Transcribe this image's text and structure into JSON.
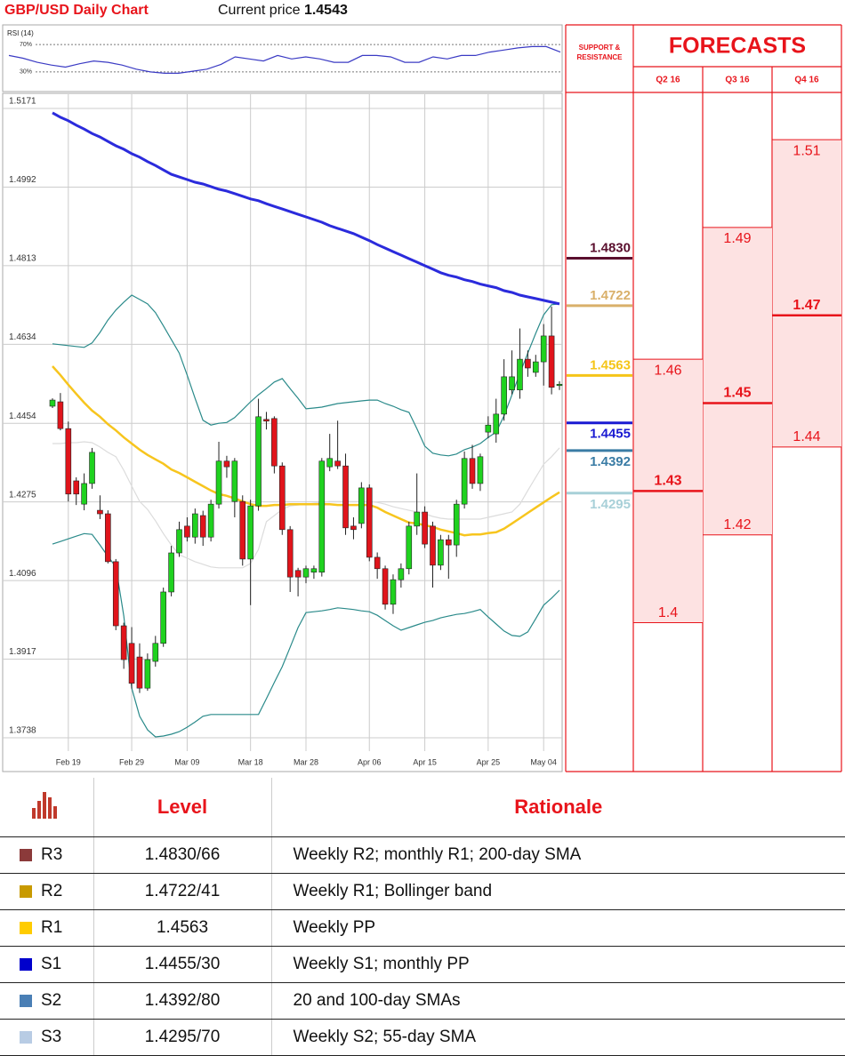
{
  "header": {
    "title": "GBP/USD Daily Chart",
    "price_label": "Current price",
    "price": 1.4543
  },
  "chart_data": [
    {
      "type": "line",
      "title": "RSI (14)",
      "color": "#3b3bc4",
      "values": [
        54,
        50,
        44,
        40,
        37,
        42,
        46,
        44,
        40,
        34,
        30,
        28,
        28,
        31,
        34,
        41,
        52,
        49,
        46,
        54,
        49,
        52,
        49,
        44,
        44,
        54,
        54,
        52,
        44,
        44,
        52,
        49,
        54,
        54,
        59,
        62,
        65,
        67,
        67,
        59
      ],
      "ylim": [
        0,
        100
      ],
      "yticks": [
        {
          "value": 30,
          "label": "30%"
        },
        {
          "value": 70,
          "label": "70%"
        }
      ]
    },
    {
      "type": "candlestick",
      "up_color": "#1fd21f",
      "down_color": "#e0141b",
      "grid": true,
      "categories": [
        null,
        null,
        "Feb 19",
        null,
        null,
        null,
        null,
        null,
        null,
        null,
        "Feb 29",
        null,
        null,
        null,
        null,
        null,
        null,
        "Mar 09",
        null,
        null,
        null,
        null,
        null,
        null,
        null,
        "Mar 18",
        null,
        null,
        null,
        null,
        null,
        null,
        "Mar 28",
        null,
        null,
        null,
        null,
        null,
        null,
        null,
        "Apr 06",
        null,
        null,
        null,
        null,
        null,
        null,
        "Apr 15",
        null,
        null,
        null,
        null,
        null,
        null,
        null,
        "Apr 25",
        null,
        null,
        null,
        null,
        null,
        null,
        "May 04",
        null,
        null
      ],
      "open": [
        1.4493,
        1.4503,
        1.4442,
        1.4323,
        1.427,
        1.4317,
        1.4256,
        1.4248,
        1.4139,
        1.3993,
        1.3953,
        1.3922,
        1.3851,
        1.3912,
        1.3953,
        1.407,
        1.4159,
        1.422,
        1.4195,
        1.4244,
        1.4195,
        1.427,
        1.4368,
        1.4276,
        1.4276,
        1.4145,
        1.4266,
        1.4463,
        1.4465,
        1.4357,
        1.4212,
        1.4119,
        1.4104,
        1.4115,
        1.4115,
        1.4355,
        1.4368,
        1.4357,
        1.422,
        1.4226,
        1.4307,
        1.4149,
        1.4123,
        1.4042,
        1.4098,
        1.4123,
        1.422,
        1.4252,
        1.422,
        1.4131,
        1.4189,
        1.4177,
        1.427,
        1.4374,
        1.4317,
        1.4434,
        1.443,
        1.4475,
        1.453,
        1.453,
        1.46,
        1.457,
        1.4594,
        1.4653,
        1.454
      ],
      "high": [
        1.4511,
        1.4523,
        1.4458,
        1.4331,
        1.434,
        1.4398,
        1.429,
        1.4256,
        1.4145,
        1.4,
        1.399,
        1.3953,
        1.393,
        1.397,
        1.408,
        1.4175,
        1.423,
        1.424,
        1.426,
        1.4255,
        1.428,
        1.4412,
        1.438,
        1.4375,
        1.429,
        1.428,
        1.451,
        1.448,
        1.447,
        1.4365,
        1.422,
        1.4125,
        1.413,
        1.413,
        1.4375,
        1.443,
        1.446,
        1.4385,
        1.424,
        1.432,
        1.4315,
        1.416,
        1.413,
        1.411,
        1.4135,
        1.423,
        1.434,
        1.4265,
        1.423,
        1.42,
        1.42,
        1.428,
        1.439,
        1.4405,
        1.4385,
        1.447,
        1.451,
        1.46,
        1.462,
        1.467,
        1.462,
        1.461,
        1.468,
        1.472,
        1.455
      ],
      "low": [
        1.4489,
        1.4438,
        1.4276,
        1.4268,
        1.4256,
        1.4305,
        1.4236,
        1.4135,
        1.3983,
        1.3895,
        1.385,
        1.384,
        1.3845,
        1.39,
        1.3945,
        1.406,
        1.415,
        1.4185,
        1.418,
        1.4175,
        1.4185,
        1.426,
        1.433,
        1.424,
        1.413,
        1.404,
        1.4255,
        1.444,
        1.434,
        1.42,
        1.407,
        1.406,
        1.409,
        1.41,
        1.4105,
        1.4345,
        1.435,
        1.42,
        1.419,
        1.4215,
        1.414,
        1.41,
        1.403,
        1.402,
        1.408,
        1.411,
        1.42,
        1.417,
        1.408,
        1.412,
        1.41,
        1.415,
        1.426,
        1.4305,
        1.43,
        1.442,
        1.441,
        1.446,
        1.452,
        1.451,
        1.456,
        1.456,
        1.454,
        1.452,
        1.453
      ],
      "close": [
        1.4507,
        1.4442,
        1.4293,
        1.4293,
        1.4317,
        1.4388,
        1.4248,
        1.4139,
        1.3993,
        1.3916,
        1.3862,
        1.3851,
        1.3916,
        1.3953,
        1.407,
        1.4159,
        1.4212,
        1.4195,
        1.4248,
        1.4195,
        1.427,
        1.4368,
        1.4355,
        1.4368,
        1.4145,
        1.4266,
        1.4469,
        1.4459,
        1.4357,
        1.4212,
        1.4104,
        1.4104,
        1.4123,
        1.4123,
        1.4368,
        1.4374,
        1.4357,
        1.4216,
        1.4212,
        1.4307,
        1.4149,
        1.4123,
        1.4042,
        1.4098,
        1.4123,
        1.422,
        1.4252,
        1.4179,
        1.4131,
        1.4189,
        1.4177,
        1.427,
        1.4374,
        1.4317,
        1.4378,
        1.445,
        1.4475,
        1.456,
        1.456,
        1.46,
        1.458,
        1.4594,
        1.4653,
        1.4536,
        1.4543
      ],
      "overlays": [
        {
          "color": "#dcdcdc",
          "values": [
            1.4408,
            1.4408,
            1.441,
            1.441,
            1.4412,
            1.441,
            1.44,
            1.4388,
            1.4378,
            1.4347,
            1.4311,
            1.4276,
            1.4258,
            1.4232,
            1.4203,
            1.4177,
            1.4155,
            1.4147,
            1.4139,
            1.4133,
            1.4127,
            1.4125,
            1.4125,
            1.4125,
            1.4125,
            1.4135,
            1.4167,
            1.423,
            1.4244,
            1.4258,
            1.4266,
            1.4268,
            1.427,
            1.4272,
            1.4274,
            1.4276,
            1.4276,
            1.4276,
            1.4276,
            1.4276,
            1.4276,
            1.4274,
            1.427,
            1.4264,
            1.426,
            1.4256,
            1.4252,
            1.4248,
            1.4242,
            1.4238,
            1.4236,
            1.4236,
            1.4236,
            1.4236,
            1.4236,
            1.424,
            1.4244,
            1.4248,
            1.4252,
            1.427,
            1.4301,
            1.4331,
            1.4361,
            1.4378,
            1.4398
          ]
        },
        {
          "color": "#2a8a8a",
          "values": [
            1.4635,
            1.4633,
            1.4631,
            1.4629,
            1.4627,
            1.4637,
            1.4661,
            1.4689,
            1.4712,
            1.473,
            1.4746,
            1.4736,
            1.4726,
            1.4706,
            1.4676,
            1.4645,
            1.4614,
            1.4564,
            1.4511,
            1.4461,
            1.445,
            1.4454,
            1.4456,
            1.4467,
            1.4485,
            1.4503,
            1.4519,
            1.4533,
            1.4548,
            1.4556,
            1.4533,
            1.4511,
            1.4487,
            1.4489,
            1.4491,
            1.4495,
            1.4499,
            1.4501,
            1.4503,
            1.4505,
            1.4507,
            1.4507,
            1.4499,
            1.4493,
            1.4485,
            1.4479,
            1.4442,
            1.4402,
            1.4386,
            1.4382,
            1.438,
            1.4384,
            1.4394,
            1.44,
            1.4408,
            1.4422,
            1.4434,
            1.4471,
            1.4519,
            1.4568,
            1.4614,
            1.4659,
            1.4701,
            1.4724,
            1.4726
          ]
        },
        {
          "color": "#2a8a8a",
          "values": [
            1.4179,
            1.4185,
            1.4191,
            1.4197,
            1.4203,
            1.4201,
            1.4177,
            1.4151,
            1.4127,
            1.4015,
            1.3851,
            1.3787,
            1.3756,
            1.374,
            1.3742,
            1.3746,
            1.3752,
            1.3762,
            1.3774,
            1.3787,
            1.3791,
            1.3791,
            1.3791,
            1.3791,
            1.3791,
            1.3791,
            1.3791,
            1.3827,
            1.3864,
            1.39,
            1.3944,
            1.3989,
            1.4023,
            1.4025,
            1.4027,
            1.403,
            1.4034,
            1.4032,
            1.403,
            1.4027,
            1.4025,
            1.4017,
            1.4005,
            1.3993,
            1.3983,
            1.3989,
            1.3995,
            1.4001,
            1.4005,
            1.4011,
            1.4015,
            1.4019,
            1.4021,
            1.4025,
            1.403,
            1.4013,
            1.3997,
            1.3981,
            1.3971,
            1.3969,
            1.3979,
            1.4009,
            1.404,
            1.4056,
            1.4074
          ]
        },
        {
          "color": "#f7c51e",
          "values": [
            1.4584,
            1.4564,
            1.4542,
            1.4521,
            1.4501,
            1.4483,
            1.4469,
            1.4452,
            1.4438,
            1.4422,
            1.4408,
            1.4394,
            1.4382,
            1.4372,
            1.4362,
            1.4349,
            1.4341,
            1.4331,
            1.4321,
            1.4311,
            1.4301,
            1.4293,
            1.4289,
            1.4283,
            1.4276,
            1.427,
            1.4266,
            1.4266,
            1.4268,
            1.4268,
            1.427,
            1.427,
            1.427,
            1.427,
            1.427,
            1.427,
            1.4268,
            1.4268,
            1.4268,
            1.4268,
            1.4268,
            1.4262,
            1.4252,
            1.4244,
            1.4236,
            1.4228,
            1.4226,
            1.4222,
            1.4218,
            1.4212,
            1.4208,
            1.4204,
            1.4199,
            1.4201,
            1.4201,
            1.4204,
            1.4206,
            1.4214,
            1.4226,
            1.4238,
            1.425,
            1.4262,
            1.4274,
            1.4286,
            1.4297
          ]
        },
        {
          "color": "#2b2bdc",
          "values": [
            1.5161,
            1.5151,
            1.5143,
            1.5133,
            1.5124,
            1.5114,
            1.5106,
            1.5096,
            1.5086,
            1.5078,
            1.5068,
            1.506,
            1.505,
            1.5041,
            1.5031,
            1.5021,
            1.5015,
            1.5009,
            1.5003,
            1.4999,
            1.4993,
            1.4987,
            1.4983,
            1.4977,
            1.4971,
            1.4965,
            1.4961,
            1.4954,
            1.4948,
            1.4942,
            1.4936,
            1.493,
            1.4924,
            1.4918,
            1.4912,
            1.4904,
            1.4898,
            1.4892,
            1.4886,
            1.4878,
            1.487,
            1.4861,
            1.4853,
            1.4845,
            1.4837,
            1.4829,
            1.4821,
            1.4813,
            1.4805,
            1.4797,
            1.4791,
            1.4787,
            1.4781,
            1.4777,
            1.4771,
            1.4767,
            1.4763,
            1.4756,
            1.4752,
            1.4746,
            1.4742,
            1.4738,
            1.4734,
            1.473,
            1.4726
          ]
        }
      ],
      "ylim": [
        1.3738,
        1.5171
      ],
      "yticks": [
        1.5171,
        1.4992,
        1.4813,
        1.4634,
        1.4454,
        1.4275,
        1.4096,
        1.3917,
        1.3738
      ]
    },
    {
      "type": "levels",
      "title": "SUPPORT & RESISTANCE",
      "values": [
        1.483,
        1.4722,
        1.4563,
        1.4455,
        1.4392,
        1.4295
      ],
      "value_labels": [
        "1.4830",
        "1.4722",
        "1.4563",
        "1.4455",
        "1.4392",
        "1.4295"
      ],
      "colors": [
        "#5a0f2e",
        "#d9b06a",
        "#f5c518",
        "#1a1ad2",
        "#3a7ca5",
        "#a8d0d8"
      ],
      "ylim": [
        1.3738,
        1.5171
      ]
    },
    {
      "type": "range",
      "title": "FORECASTS",
      "categories": [
        "Q2 16",
        "Q3 16",
        "Q4 16"
      ],
      "high": [
        1.46,
        1.49,
        1.51
      ],
      "mid": [
        1.43,
        1.45,
        1.47
      ],
      "low": [
        1.4,
        1.42,
        1.44
      ],
      "color": "#e8141b",
      "fill": "#fde2e2",
      "ylim": [
        1.3738,
        1.5171
      ]
    }
  ],
  "table": {
    "header": [
      "Level",
      "Rationale"
    ],
    "rows": [
      [
        "R3",
        "1.4830/66",
        "Weekly R2; monthly R1; 200-day SMA"
      ],
      [
        "R2",
        "1.4722/41",
        "Weekly R1; Bollinger band"
      ],
      [
        "R1",
        "1.4563",
        "Weekly PP"
      ],
      [
        "S1",
        "1.4455/30",
        "Weekly S1; monthly PP"
      ],
      [
        "S2",
        "1.4392/80",
        "20 and 100-day SMAs"
      ],
      [
        "S3",
        "1.4295/70",
        "Weekly S2; 55-day SMA"
      ]
    ],
    "colors": [
      "#8b3a3a",
      "#c89a00",
      "#ffcc00",
      "#0000cc",
      "#4a7fb5",
      "#b8cce4"
    ]
  }
}
